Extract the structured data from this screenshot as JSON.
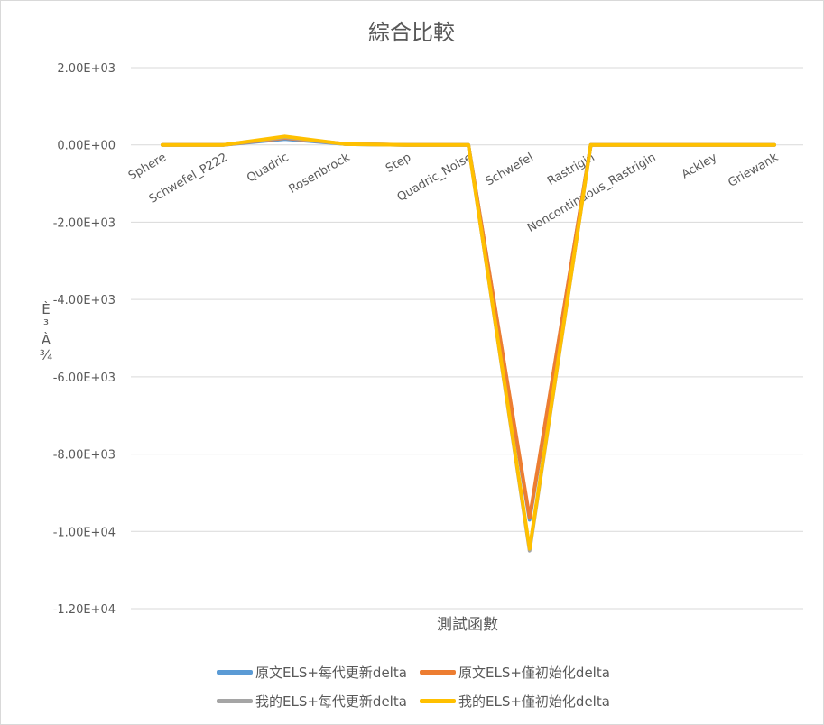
{
  "chart_data": {
    "type": "line",
    "title": "綜合比較",
    "xlabel": "測試函數",
    "ylabel": "È³À¾",
    "categories": [
      "Sphere",
      "Schwefel_P222",
      "Quadric",
      "Rosenbrock",
      "Step",
      "Quadric_Noise",
      "Schwefel",
      "Rastrigin",
      "Noncontinuous_Rastrigin",
      "Ackley",
      "Griewank"
    ],
    "ylim": [
      -12000,
      2000
    ],
    "yticks": [
      2000,
      0,
      -2000,
      -4000,
      -6000,
      -8000,
      -10000,
      -12000
    ],
    "ytick_labels": [
      "2.00E+03",
      "0.00E+00",
      "-2.00E+03",
      "-4.00E+03",
      "-6.00E+03",
      "-8.00E+03",
      "-1.00E+04",
      "-1.20E+04"
    ],
    "grid": true,
    "legend_position": "bottom",
    "series": [
      {
        "name": "原文ELS+每代更新delta",
        "color": "#5b9bd5",
        "values": [
          0,
          0,
          150,
          20,
          0,
          0,
          -9700,
          0,
          0,
          0,
          0
        ]
      },
      {
        "name": "原文ELS+僅初始化delta",
        "color": "#ed7d31",
        "values": [
          0,
          0,
          180,
          25,
          0,
          0,
          -9650,
          0,
          0,
          0,
          0
        ]
      },
      {
        "name": "我的ELS+每代更新delta",
        "color": "#a5a5a5",
        "values": [
          0,
          0,
          200,
          20,
          0,
          0,
          -10500,
          0,
          0,
          0,
          0
        ]
      },
      {
        "name": "我的ELS+僅初始化delta",
        "color": "#ffc000",
        "values": [
          0,
          0,
          220,
          20,
          0,
          0,
          -10450,
          0,
          0,
          0,
          0
        ]
      }
    ]
  }
}
